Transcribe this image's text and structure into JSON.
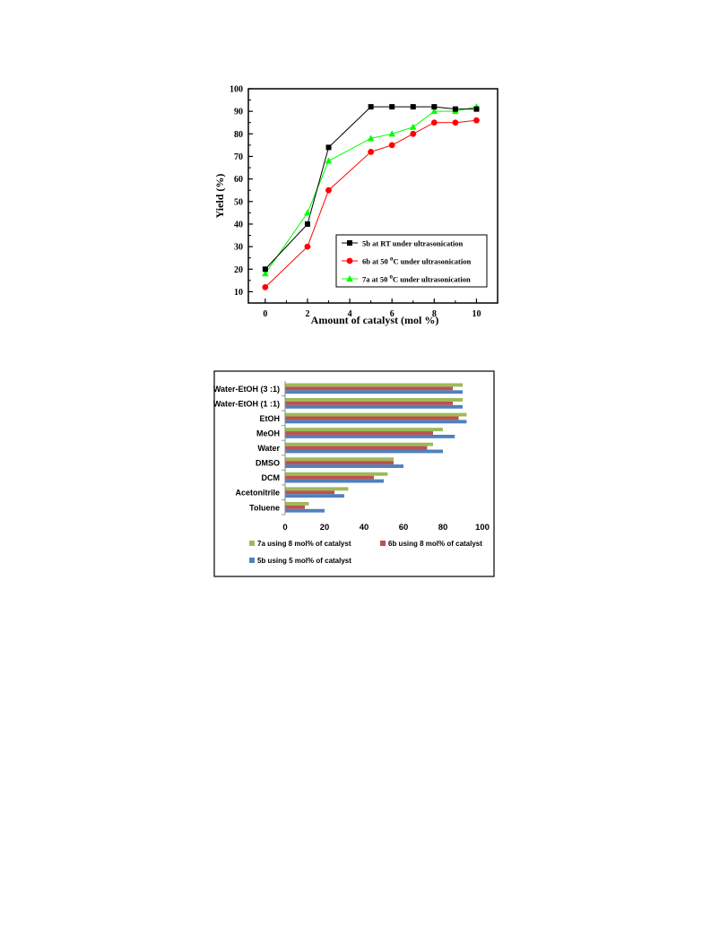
{
  "chart_data": [
    {
      "type": "line",
      "title": "",
      "xlabel": "Amount of catalyst (mol %)",
      "ylabel": "Yield (%)",
      "xlim": [
        -0.8,
        11
      ],
      "ylim": [
        5,
        100
      ],
      "xticks": [
        0,
        2,
        4,
        6,
        8,
        10
      ],
      "yticks": [
        10,
        20,
        30,
        40,
        50,
        60,
        70,
        80,
        90,
        100
      ],
      "grid": false,
      "legend_position": "lower-right",
      "series": [
        {
          "name": "5b at RT under ultrasonication",
          "marker": "square",
          "color": "#000000",
          "x": [
            0,
            2,
            3,
            5,
            6,
            7,
            8,
            9,
            10
          ],
          "y": [
            20,
            40,
            74,
            92,
            92,
            92,
            92,
            91,
            91
          ]
        },
        {
          "name": "6b at 50 °C under ultrasonication",
          "legend_text": "6b at 50",
          "legend_sup": "o",
          "legend_tail": "C under ultrasonication",
          "marker": "circle",
          "color": "#ff0000",
          "x": [
            0,
            2,
            3,
            5,
            6,
            7,
            8,
            9,
            10
          ],
          "y": [
            12,
            30,
            55,
            72,
            75,
            80,
            85,
            85,
            86
          ]
        },
        {
          "name": "7a at 50 °C under ultrasonication",
          "legend_text": "7a at 50",
          "legend_sup": "o",
          "legend_tail": "C under ultrasonication",
          "marker": "triangle",
          "color": "#00ff00",
          "x": [
            0,
            2,
            3,
            5,
            6,
            7,
            8,
            9,
            10
          ],
          "y": [
            18,
            45,
            68,
            78,
            80,
            83,
            90,
            90,
            92
          ]
        }
      ]
    },
    {
      "type": "bar",
      "orientation": "horizontal",
      "title": "",
      "xlabel": "",
      "ylabel": "",
      "xlim": [
        0,
        100
      ],
      "xticks": [
        0,
        20,
        40,
        60,
        80,
        100
      ],
      "grid": false,
      "legend_position": "bottom",
      "categories": [
        "Water-EtOH (3 :1)",
        "Water-EtOH (1 :1)",
        "EtOH",
        "MeOH",
        "Water",
        "DMSO",
        "DCM",
        "Acetonitrile",
        "Toluene"
      ],
      "series": [
        {
          "name": "7a using 8 mol% of catalyst",
          "color": "#9bbb59",
          "values": [
            90,
            90,
            92,
            80,
            75,
            55,
            52,
            32,
            12
          ]
        },
        {
          "name": "6b using 8 mol% of catalyst",
          "color": "#c0504d",
          "values": [
            85,
            85,
            88,
            75,
            72,
            55,
            45,
            25,
            10
          ]
        },
        {
          "name": "5b using 5 mol% of catalyst",
          "color": "#4f81bd",
          "values": [
            90,
            90,
            92,
            86,
            80,
            60,
            50,
            30,
            20
          ]
        }
      ]
    }
  ]
}
